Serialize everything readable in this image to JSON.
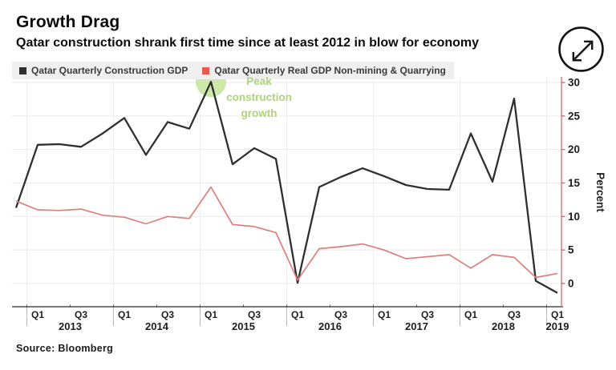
{
  "header": {
    "title": "Growth Drag",
    "subtitle": "Qatar construction shrank first time since at least 2012 in blow for economy"
  },
  "legend": {
    "items": [
      {
        "label": "Qatar Quarterly Construction GDP",
        "color": "#2f2f2f"
      },
      {
        "label": "Qatar Quarterly Real GDP Non-mining & Quarrying",
        "color": "#ea5a52"
      }
    ]
  },
  "annotation": {
    "text": "Peak construction growth",
    "color": "#aed478",
    "circle_color": "#c9e5a0"
  },
  "source": "Source: Bloomberg",
  "chart_data": {
    "type": "line",
    "title": "Growth Drag",
    "subtitle": "Qatar construction shrank first time since at least 2012 in blow for economy",
    "xlabel": "",
    "ylabel": "Percent",
    "yticks": [
      0,
      5,
      10,
      15,
      20,
      25,
      30
    ],
    "ylim": [
      -3.5,
      31.5
    ],
    "grid": true,
    "legend_position": "top-left",
    "categories": [
      "Q4 2012",
      "Q1 2013",
      "Q2 2013",
      "Q3 2013",
      "Q4 2013",
      "Q1 2014",
      "Q2 2014",
      "Q3 2014",
      "Q4 2014",
      "Q1 2015",
      "Q2 2015",
      "Q3 2015",
      "Q4 2015",
      "Q1 2016",
      "Q2 2016",
      "Q3 2016",
      "Q4 2016",
      "Q1 2017",
      "Q2 2017",
      "Q3 2017",
      "Q4 2017",
      "Q1 2018",
      "Q2 2018",
      "Q3 2018",
      "Q4 2018",
      "Q1 2019"
    ],
    "series": [
      {
        "name": "Qatar Quarterly Construction GDP",
        "color": "#2f2f2f",
        "values": [
          11.3,
          20.7,
          20.8,
          20.4,
          22.4,
          24.7,
          19.2,
          24.1,
          23.1,
          30.1,
          17.8,
          20.2,
          18.6,
          0.1,
          14.4,
          15.9,
          17.2,
          16.0,
          14.7,
          14.1,
          14.0,
          22.4,
          15.2,
          27.6,
          0.4,
          -1.4
        ]
      },
      {
        "name": "Qatar Quarterly Real GDP Non-mining & Quarrying",
        "color": "#db807c",
        "values": [
          12.3,
          11.0,
          10.9,
          11.1,
          10.2,
          9.9,
          8.9,
          10.0,
          9.7,
          14.4,
          8.8,
          8.5,
          7.6,
          0.5,
          5.2,
          5.5,
          5.9,
          5.0,
          3.7,
          4.0,
          4.3,
          2.3,
          4.3,
          3.9,
          0.9,
          1.5
        ]
      }
    ],
    "annotation": {
      "text": "Peak construction growth",
      "target_category": "Q1 2015",
      "target_value": 30.1
    }
  }
}
